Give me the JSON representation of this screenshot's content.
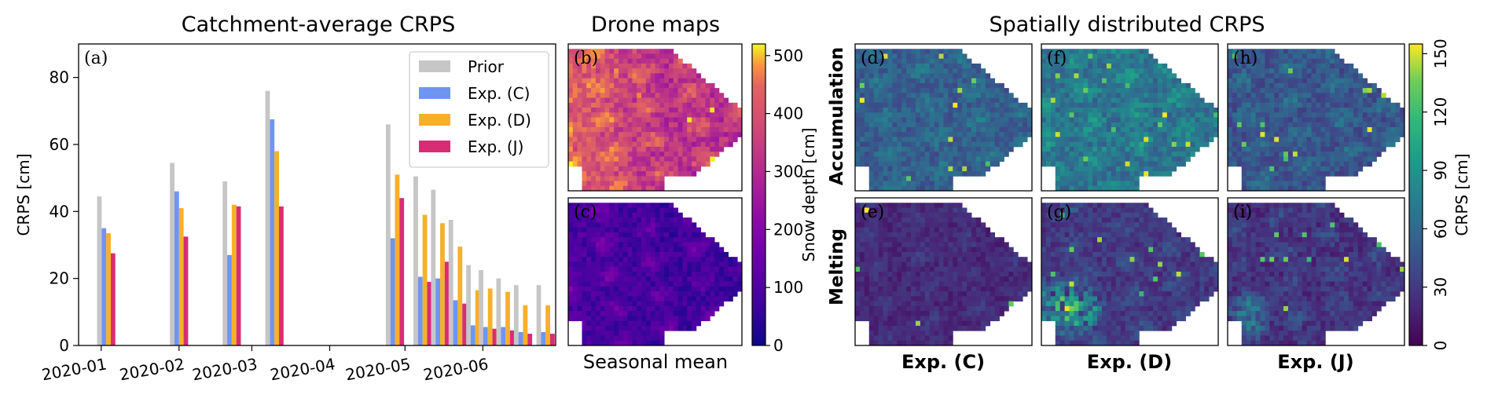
{
  "titles": {
    "panel_a": "Catchment-average CRPS",
    "drone": "Drone maps",
    "spatial": "Spatially distributed CRPS"
  },
  "seasonal_mean": "Seasonal mean",
  "row_labels": {
    "accumulation": "Accumulation",
    "melting": "Melting"
  },
  "panel_letters": [
    "(a)",
    "(b)",
    "(c)",
    "(d)",
    "(e)",
    "(f)",
    "(g)",
    "(h)",
    "(i)"
  ],
  "columns": [
    {
      "label": "Exp. (C)",
      "color": "#6f95f2"
    },
    {
      "label": "Exp. (D)",
      "color": "#f6b02b"
    },
    {
      "label": "Exp. (J)",
      "color": "#d82d74"
    }
  ],
  "chart_data": [
    {
      "type": "bar",
      "title": "Catchment-average CRPS",
      "ylabel": "CRPS [cm]",
      "xlabel": "",
      "ylim": [
        0,
        90
      ],
      "yticks": [
        0,
        20,
        40,
        60,
        80
      ],
      "xlim": [
        "2019-12-23",
        "2020-06-30"
      ],
      "xticks": [
        "2020-01",
        "2020-02",
        "2020-03",
        "2020-04",
        "2020-05",
        "2020-06"
      ],
      "xtick_dates": [
        "2020-01-01",
        "2020-02-01",
        "2020-03-01",
        "2020-04-01",
        "2020-05-01",
        "2020-06-01"
      ],
      "legend": {
        "position": "top-right"
      },
      "dates": [
        "2020-01-03",
        "2020-02-01",
        "2020-02-22",
        "2020-03-10",
        "2020-04-27",
        "2020-05-08",
        "2020-05-15",
        "2020-05-22",
        "2020-05-29",
        "2020-06-03",
        "2020-06-10",
        "2020-06-17",
        "2020-06-26"
      ],
      "series": [
        {
          "name": "Prior",
          "color": "#c6c6c6",
          "values": [
            44.5,
            54.5,
            49,
            76,
            66,
            50.5,
            46.5,
            37.5,
            24,
            22.5,
            20,
            18,
            18
          ]
        },
        {
          "name": "Exp. (C)",
          "color": "#6f95f2",
          "values": [
            35,
            46,
            27,
            67.5,
            32,
            20.5,
            20,
            13.5,
            6,
            5.5,
            5.5,
            4,
            4
          ]
        },
        {
          "name": "Exp. (D)",
          "color": "#f6b02b",
          "values": [
            33.5,
            41,
            42,
            58,
            51,
            39,
            36.5,
            29.5,
            16.5,
            17,
            16,
            12,
            12
          ]
        },
        {
          "name": "Exp. (J)",
          "color": "#d82d74",
          "values": [
            27.5,
            32.5,
            41.5,
            41.5,
            44,
            19,
            25,
            12.5,
            5,
            5,
            4.5,
            3.5,
            3.5
          ]
        }
      ]
    },
    {
      "type": "heatmap",
      "title": "Drone maps",
      "colorbar_label": "Snow depth [cm]",
      "colorbar_ticks": [
        0,
        100,
        200,
        300,
        400,
        500
      ],
      "colorbar_range": [
        0,
        520
      ],
      "colormap": "plasma"
    },
    {
      "type": "heatmap",
      "title": "Spatially distributed CRPS",
      "colorbar_label": "CRPS [cm]",
      "colorbar_ticks": [
        0,
        30,
        60,
        90,
        120,
        150
      ],
      "colorbar_range": [
        0,
        155
      ],
      "colormap": "viridis"
    }
  ]
}
